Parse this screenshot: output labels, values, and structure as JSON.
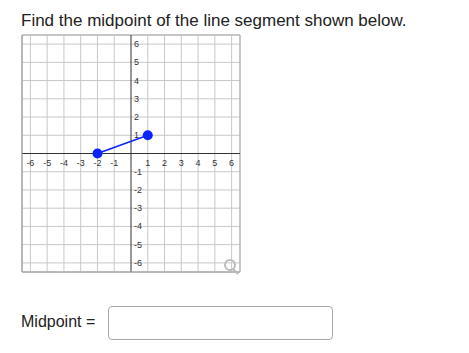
{
  "chart_data": {
    "type": "line",
    "title": "Find the midpoint of the line segment shown below.",
    "x": [
      -2,
      1
    ],
    "values": [
      0,
      1
    ],
    "color": "#0b24fb",
    "marker": "circle",
    "xlim": [
      -6.5,
      6.5
    ],
    "ylim": [
      -6.5,
      6.5
    ],
    "xticks": [
      -6,
      -5,
      -4,
      -3,
      -2,
      -1,
      1,
      2,
      3,
      4,
      5,
      6
    ],
    "yticks": [
      -6,
      -5,
      -4,
      -3,
      -2,
      -1,
      1,
      2,
      3,
      4,
      5,
      6
    ],
    "grid": true
  },
  "form": {
    "label": "Midpoint ="
  }
}
